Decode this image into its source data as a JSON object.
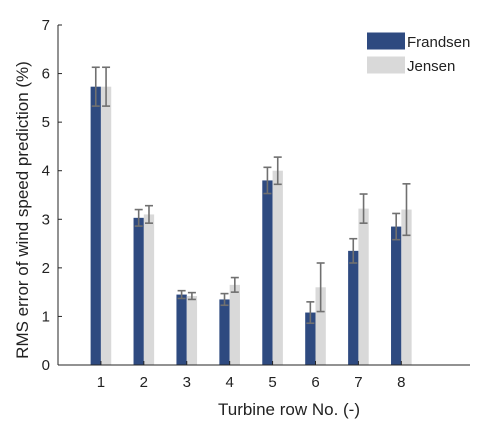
{
  "chart_data": {
    "type": "bar",
    "title": "",
    "xlabel": "Turbine row No. (-)",
    "ylabel": "RMS error of wind speed prediction (%)",
    "categories": [
      "1",
      "2",
      "3",
      "4",
      "5",
      "6",
      "7",
      "8"
    ],
    "xlim": [
      0,
      9.6
    ],
    "ylim": [
      0,
      7
    ],
    "yticks": [
      0,
      1,
      2,
      3,
      4,
      5,
      6,
      7
    ],
    "grid": false,
    "legend_position": "top-right",
    "series": [
      {
        "name": "Frandsen",
        "color": "#2e4a80",
        "values": [
          5.73,
          3.03,
          1.45,
          1.35,
          3.8,
          1.08,
          2.35,
          2.85
        ],
        "error": [
          0.4,
          0.17,
          0.08,
          0.12,
          0.27,
          0.22,
          0.25,
          0.27
        ]
      },
      {
        "name": "Jensen",
        "color": "#d9d9d9",
        "values": [
          5.73,
          3.1,
          1.42,
          1.65,
          4.0,
          1.6,
          3.22,
          3.2
        ],
        "error": [
          0.4,
          0.18,
          0.07,
          0.15,
          0.28,
          0.5,
          0.3,
          0.53
        ]
      }
    ],
    "error_bar_color": "#707070"
  }
}
